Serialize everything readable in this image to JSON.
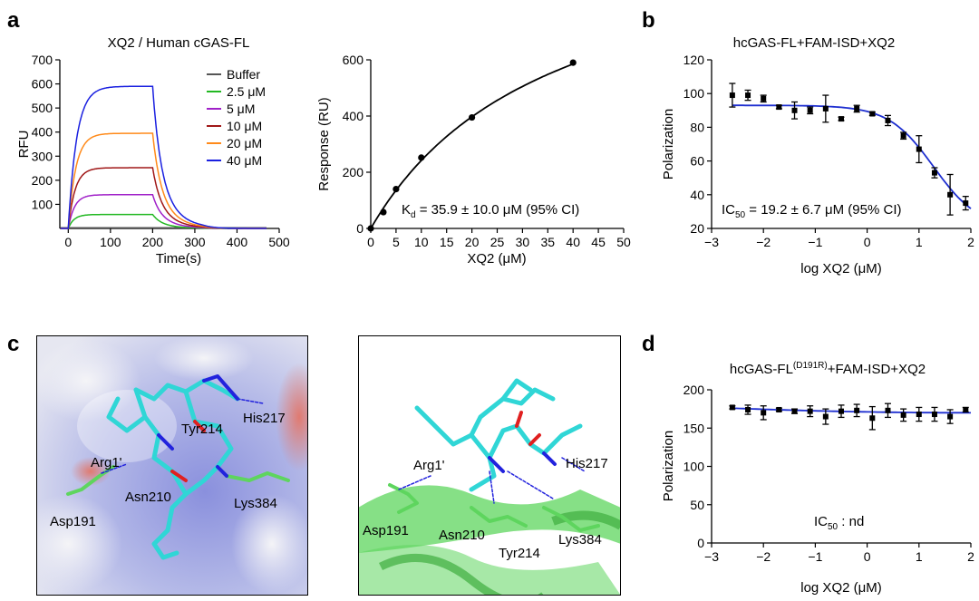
{
  "panel_labels": {
    "a": "a",
    "b": "b",
    "c": "c",
    "d": "d"
  },
  "chart_data": [
    {
      "id": "a1",
      "type": "line",
      "title": "XQ2 / Human cGAS-FL",
      "xlabel": "Time(s)",
      "ylabel": "RFU",
      "xlim": [
        -20,
        500
      ],
      "ylim": [
        0,
        700
      ],
      "xticks": [
        0,
        100,
        200,
        300,
        400,
        500
      ],
      "yticks": [
        100,
        200,
        300,
        400,
        500,
        600,
        700
      ],
      "association_end": 200,
      "series": [
        {
          "name": "Buffer",
          "color": "#555555",
          "plateau": 0
        },
        {
          "name": "2.5 μM",
          "color": "#22b822",
          "plateau": 58
        },
        {
          "name": "5 μM",
          "color": "#a020c8",
          "plateau": 140
        },
        {
          "name": "10 μM",
          "color": "#a01818",
          "plateau": 252
        },
        {
          "name": "20 μM",
          "color": "#ff8a1a",
          "plateau": 395
        },
        {
          "name": "40 μM",
          "color": "#1a20e0",
          "plateau": 590
        }
      ]
    },
    {
      "id": "a2",
      "type": "scatter",
      "xlabel": "XQ2 (μM)",
      "ylabel": "Response (RU)",
      "xlim": [
        0,
        50
      ],
      "ylim": [
        0,
        600
      ],
      "xticks": [
        0,
        5,
        10,
        15,
        20,
        25,
        30,
        35,
        40,
        45,
        50
      ],
      "yticks": [
        0,
        200,
        400,
        600
      ],
      "x": [
        0,
        2.5,
        5,
        10,
        20,
        40
      ],
      "y": [
        0,
        58,
        140,
        252,
        395,
        590
      ],
      "fit": {
        "model": "one-site",
        "bmax": 1110,
        "kd": 35.9
      },
      "annotation": {
        "k": "K",
        "sub": "d",
        "rest": " = 35.9 ± 10.0 μM (95% CI)"
      }
    },
    {
      "id": "b",
      "type": "scatter",
      "title": "hcGAS-FL+FAM-ISD+XQ2",
      "xlabel": "log XQ2 (μM)",
      "ylabel": "Polarization",
      "xlim": [
        -3,
        2
      ],
      "ylim": [
        20,
        120
      ],
      "xticks": [
        -3,
        -2,
        -1,
        0,
        1,
        2
      ],
      "yticks": [
        20,
        40,
        60,
        80,
        100,
        120
      ],
      "x": [
        -2.6,
        -2.3,
        -2.0,
        -1.7,
        -1.4,
        -1.1,
        -0.8,
        -0.5,
        -0.2,
        0.1,
        0.4,
        0.7,
        1.0,
        1.3,
        1.6,
        1.9
      ],
      "y": [
        99,
        99,
        97,
        92,
        90,
        90,
        91,
        85,
        91,
        88,
        84,
        75,
        67,
        53,
        40,
        35
      ],
      "err": [
        7,
        3,
        2,
        1,
        5,
        2,
        8,
        1,
        2,
        1,
        3,
        2,
        8,
        3,
        12,
        4
      ],
      "fit": {
        "model": "4PL",
        "top": 93,
        "bottom": 20,
        "log_ic50": 1.283,
        "hill": 1
      },
      "annotation": {
        "k": "IC",
        "sub": "50",
        "rest": " = 19.2 ± 6.7 μM (95% CI)"
      }
    },
    {
      "id": "d",
      "type": "scatter",
      "title": {
        "pre": "hcGAS-FL",
        "sup": "(D191R)",
        "post": "+FAM-ISD+XQ2"
      },
      "xlabel": "log XQ2 (μM)",
      "ylabel": "Polarization",
      "xlim": [
        -3,
        2
      ],
      "ylim": [
        0,
        200
      ],
      "xticks": [
        -3,
        -2,
        -1,
        0,
        1,
        2
      ],
      "yticks": [
        0,
        50,
        100,
        150,
        200
      ],
      "x": [
        -2.6,
        -2.3,
        -2.0,
        -1.7,
        -1.4,
        -1.1,
        -0.8,
        -0.5,
        -0.2,
        0.1,
        0.4,
        0.7,
        1.0,
        1.3,
        1.6,
        1.9
      ],
      "y": [
        177,
        174,
        170,
        174,
        172,
        172,
        165,
        172,
        173,
        163,
        173,
        167,
        168,
        168,
        165,
        174
      ],
      "err": [
        2,
        6,
        9,
        2,
        3,
        7,
        10,
        8,
        8,
        15,
        9,
        8,
        9,
        9,
        9,
        3
      ],
      "fit": {
        "model": "flat",
        "start": 176,
        "end": 170
      },
      "annotation": {
        "k": "IC",
        "sub": "50",
        "rest": " : nd"
      }
    }
  ],
  "structures": {
    "left_labels": [
      "His217",
      "Tyr214",
      "Arg1'",
      "Asn210",
      "Lys384",
      "Asp191"
    ],
    "right_labels": [
      "Arg1'",
      "His217",
      "Asp191",
      "Asn210",
      "Tyr214",
      "Lys384"
    ],
    "colors": {
      "peptide": "#30d6d6",
      "nitrogen": "#2222dd",
      "oxygen": "#e02020",
      "protein": "#5ed55e",
      "surface_blue": "#7d87d8",
      "surface_red": "#e8857a"
    }
  }
}
